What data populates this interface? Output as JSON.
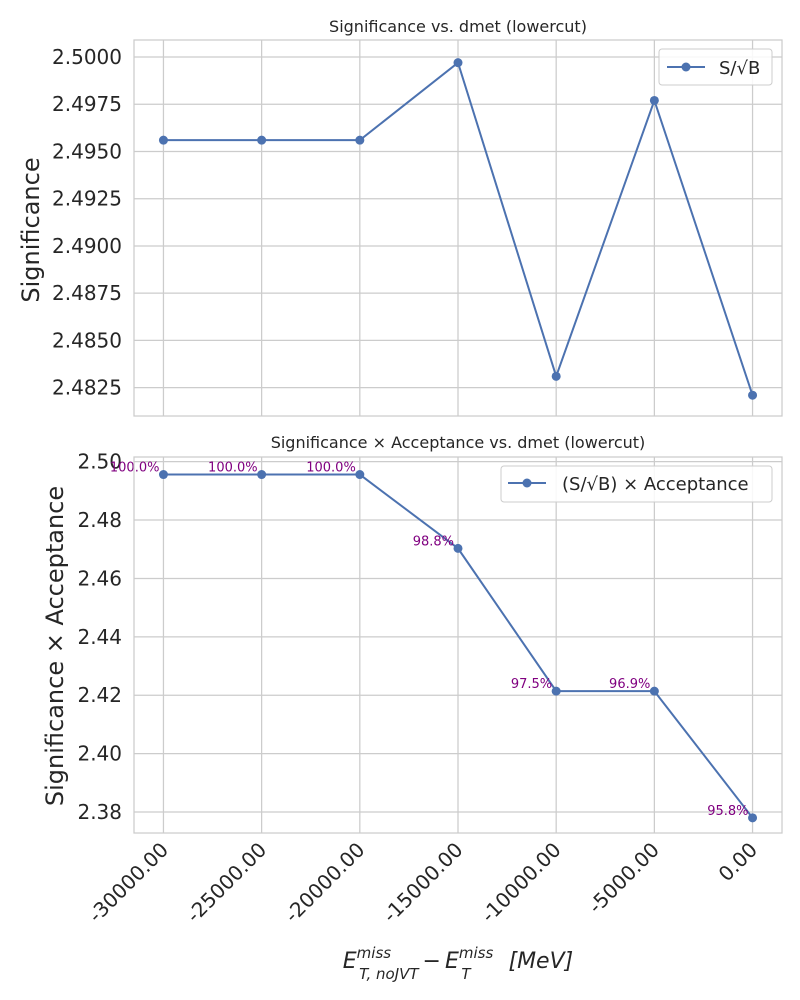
{
  "chart_data": [
    {
      "type": "line",
      "title": "Significance vs. dmet (lowercut)",
      "ylabel": "Significance",
      "x": [
        -30000,
        -25000,
        -20000,
        -15000,
        -10000,
        -5000,
        0
      ],
      "series": [
        {
          "name": "S/√B",
          "values": [
            2.4956,
            2.4956,
            2.4956,
            2.4997,
            2.4831,
            2.4977,
            2.4821
          ]
        }
      ],
      "ylim": [
        2.481,
        2.5009
      ],
      "yticks": [
        2.4825,
        2.485,
        2.4875,
        2.49,
        2.4925,
        2.495,
        2.4975,
        2.5
      ],
      "ytick_labels": [
        "2.4825",
        "2.4850",
        "2.4875",
        "2.4900",
        "2.4925",
        "2.4950",
        "2.4975",
        "2.5000"
      ],
      "xlim": [
        -31500,
        1500
      ],
      "legend": "top-right",
      "grid": true
    },
    {
      "type": "line",
      "title": "Significance × Acceptance vs. dmet (lowercut)",
      "ylabel": "Significance × Acceptance",
      "x": [
        -30000,
        -25000,
        -20000,
        -15000,
        -10000,
        -5000,
        0
      ],
      "series": [
        {
          "name": "(S/√B) × Acceptance",
          "values": [
            2.4956,
            2.4956,
            2.4956,
            2.4703,
            2.4214,
            2.4214,
            2.378
          ]
        }
      ],
      "annotations": [
        "100.0%",
        "100.0%",
        "100.0%",
        "98.8%",
        "97.5%",
        "96.9%",
        "95.8%"
      ],
      "ylim": [
        2.3728,
        2.5016
      ],
      "yticks": [
        2.38,
        2.4,
        2.42,
        2.44,
        2.46,
        2.48,
        2.5
      ],
      "ytick_labels": [
        "2.38",
        "2.40",
        "2.42",
        "2.44",
        "2.46",
        "2.48",
        "2.50"
      ],
      "xlim": [
        -31500,
        1500
      ],
      "xticks": [
        -30000,
        -25000,
        -20000,
        -15000,
        -10000,
        -5000,
        0
      ],
      "xtick_labels": [
        "-30000.00",
        "-25000.00",
        "-20000.00",
        "-15000.00",
        "-10000.00",
        "-5000.00",
        "0.00"
      ],
      "xlabel": {
        "E": "E",
        "sup1": "miss",
        "sub1": "T, noJVT",
        "minus": "−",
        "E2": "E",
        "sup2": "miss",
        "sub2": "T",
        "unit": "[MeV]"
      },
      "legend": "top-right",
      "grid": true
    }
  ],
  "colors": {
    "series": "#4c72b0",
    "annotation": "#800080",
    "grid": "#cccccc",
    "axes": "#cccccc",
    "text": "#262626"
  }
}
